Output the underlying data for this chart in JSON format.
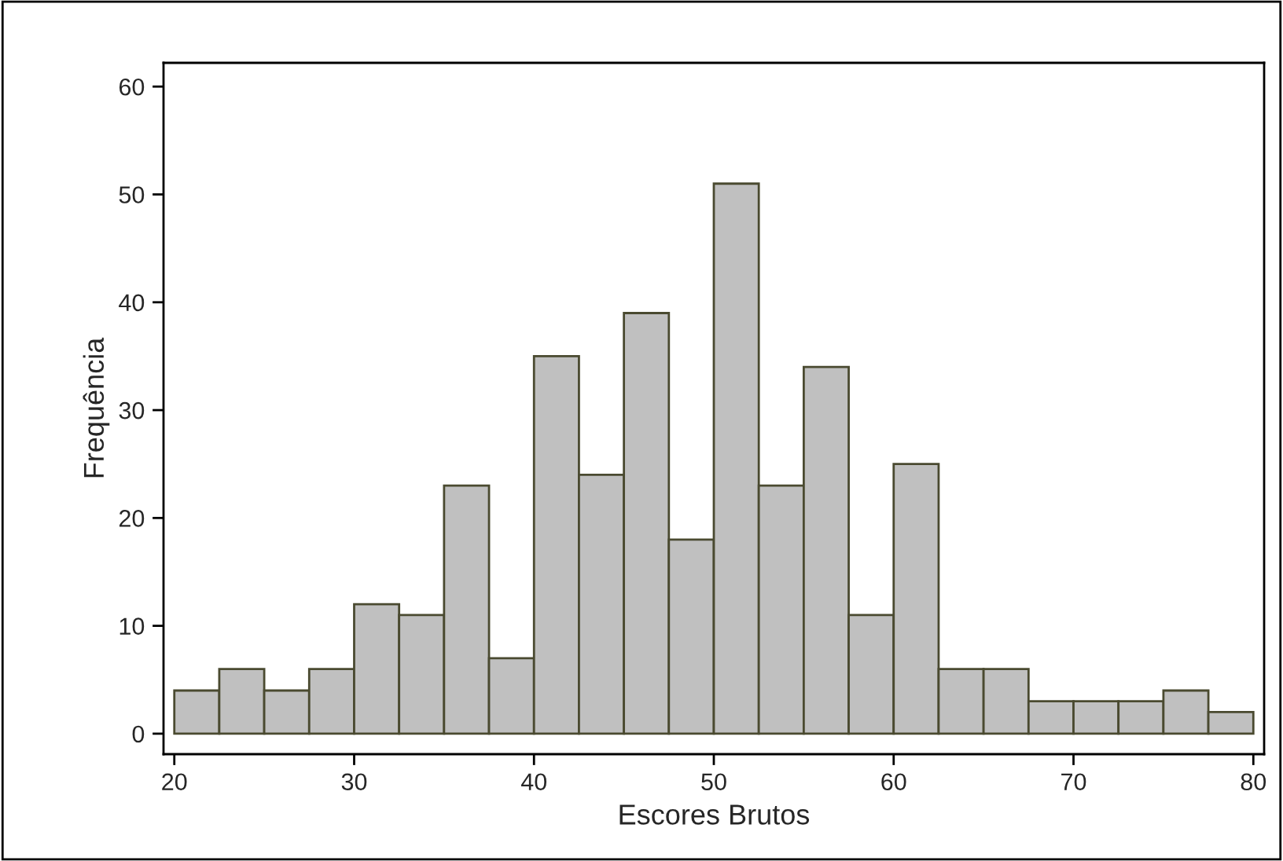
{
  "chart_data": {
    "type": "histogram",
    "xlabel": "Escores Brutos",
    "ylabel": "Frequência",
    "bins": [
      20,
      22.5,
      25,
      27.5,
      30,
      32.5,
      35,
      37.5,
      40,
      42.5,
      45,
      47.5,
      50,
      52.5,
      55,
      57.5,
      60,
      62.5,
      65,
      67.5,
      70,
      72.5,
      75,
      77.5,
      80
    ],
    "values": [
      4,
      6,
      4,
      6,
      12,
      11,
      23,
      7,
      35,
      24,
      39,
      18,
      51,
      23,
      34,
      11,
      25,
      6,
      6,
      3,
      3,
      3,
      4,
      2
    ],
    "color": "#c0c0c0",
    "xlim": [
      19.4,
      80.6
    ],
    "ylim": [
      -1.9,
      62.2
    ],
    "xticks": [
      20,
      30,
      40,
      50,
      60,
      70,
      80
    ],
    "yticks": [
      0,
      10,
      20,
      30,
      40,
      50,
      60
    ],
    "grid": false
  }
}
